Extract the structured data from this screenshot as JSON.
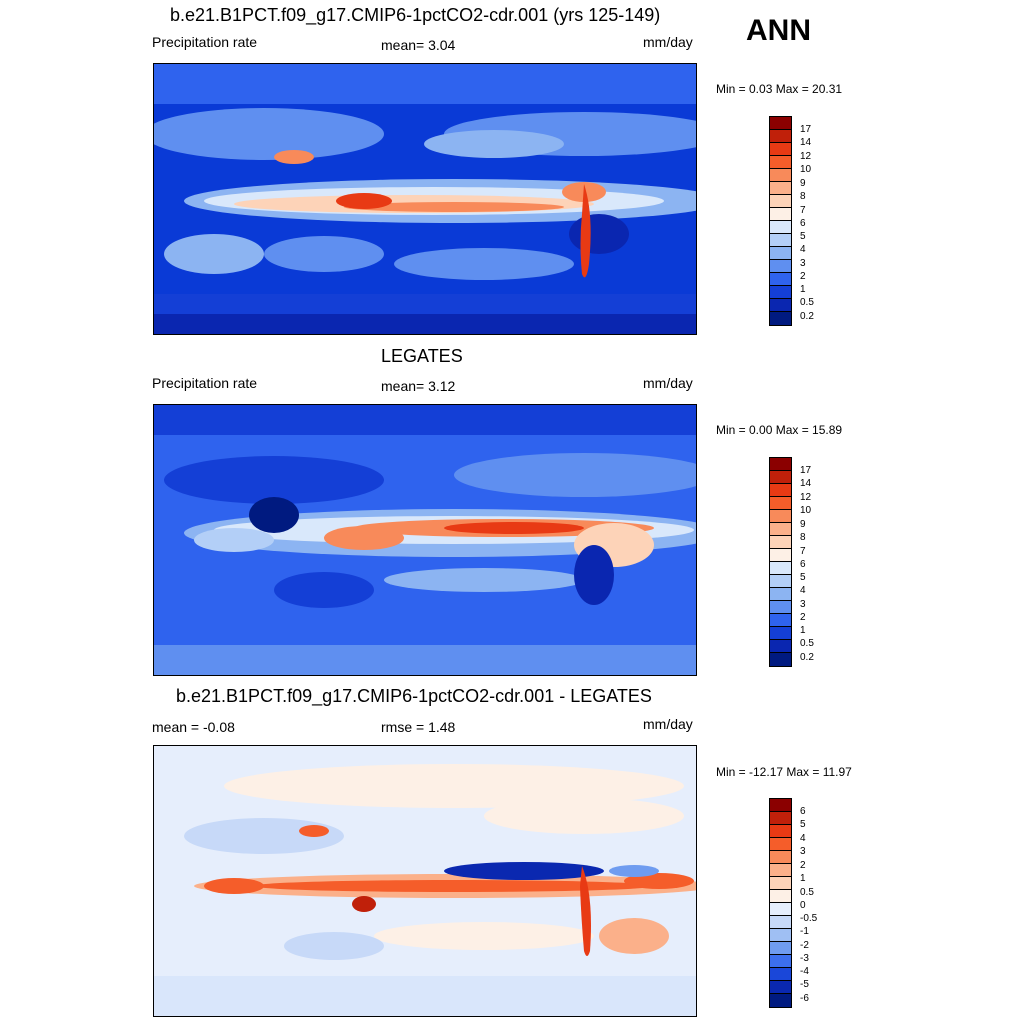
{
  "season": "ANN",
  "panels": [
    {
      "title": "b.e21.B1PCT.f09_g17.CMIP6-1pctCO2-cdr.001 (yrs 125-149)",
      "left_label": "Precipitation rate",
      "center_label": "mean=   3.04",
      "units": "mm/day",
      "minmax": "Min =   0.03 Max =  20.31",
      "levels": [
        "17",
        "14",
        "12",
        "10",
        "9",
        "8",
        "7",
        "6",
        "5",
        "4",
        "3",
        "2",
        "1",
        "0.5",
        "0.2"
      ],
      "colors": [
        "#8b0000",
        "#c0200a",
        "#e83a14",
        "#f55d2a",
        "#f88a5a",
        "#fbb08a",
        "#fdd3b8",
        "#fdf0e6",
        "#d9e8fb",
        "#b3cff7",
        "#8cb4f2",
        "#5f8ff0",
        "#2f63ee",
        "#143fd6",
        "#0a26b0",
        "#001a80"
      ]
    },
    {
      "title": "LEGATES",
      "left_label": "Precipitation rate",
      "center_label": "mean=   3.12",
      "units": "mm/day",
      "minmax": "Min =   0.00 Max =  15.89",
      "levels": [
        "17",
        "14",
        "12",
        "10",
        "9",
        "8",
        "7",
        "6",
        "5",
        "4",
        "3",
        "2",
        "1",
        "0.5",
        "0.2"
      ],
      "colors": [
        "#8b0000",
        "#c0200a",
        "#e83a14",
        "#f55d2a",
        "#f88a5a",
        "#fbb08a",
        "#fdd3b8",
        "#fdf0e6",
        "#d9e8fb",
        "#b3cff7",
        "#8cb4f2",
        "#5f8ff0",
        "#2f63ee",
        "#143fd6",
        "#0a26b0",
        "#001a80"
      ]
    },
    {
      "title": "b.e21.B1PCT.f09_g17.CMIP6-1pctCO2-cdr.001 - LEGATES",
      "left_label": "mean =  -0.08",
      "center_label": "rmse =   1.48",
      "units": "mm/day",
      "minmax": "Min = -12.17 Max =  11.97",
      "levels": [
        "6",
        "5",
        "4",
        "3",
        "2",
        "1",
        "0.5",
        "0",
        "-0.5",
        "-1",
        "-2",
        "-3",
        "-4",
        "-5",
        "-6"
      ],
      "colors": [
        "#8b0000",
        "#c0200a",
        "#e83a14",
        "#f55d2a",
        "#f88a5a",
        "#fbb08a",
        "#fdd3b8",
        "#fdf0e6",
        "#e6eefc",
        "#c7d9f8",
        "#9fbff3",
        "#6f9cf0",
        "#3c6fee",
        "#1a47d9",
        "#0a28b0",
        "#001a80"
      ]
    }
  ]
}
